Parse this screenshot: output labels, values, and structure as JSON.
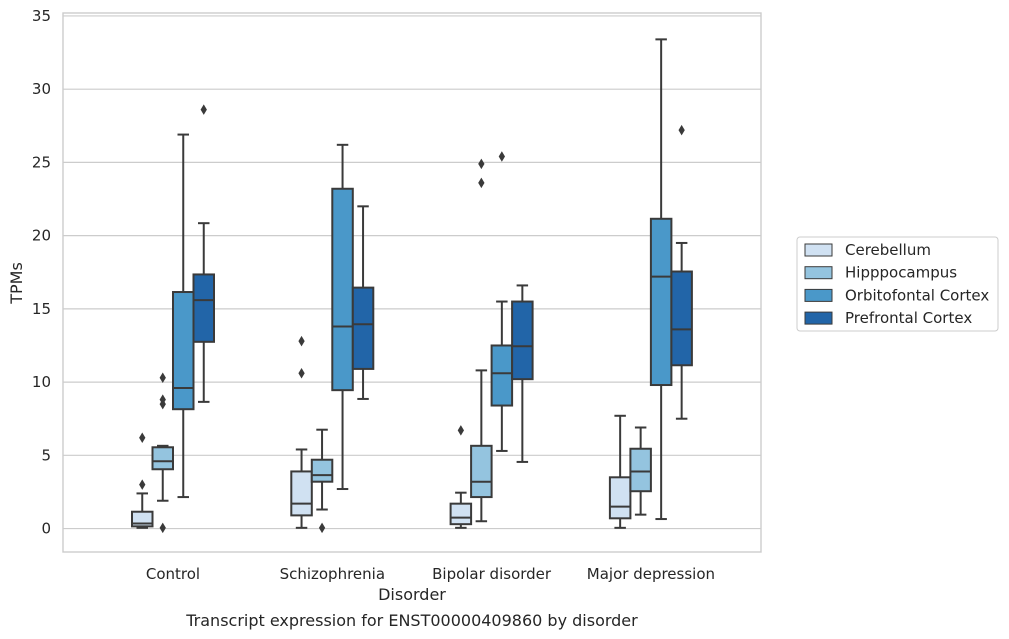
{
  "caption": "Transcript expression for ENST00000409860 by disorder",
  "chart_data": {
    "type": "boxplot",
    "title": "",
    "xlabel": "Disorder",
    "ylabel": "TPMs",
    "ylim": [
      -1.6,
      35.2
    ],
    "yticks": [
      0,
      5,
      10,
      15,
      20,
      25,
      30,
      35
    ],
    "grid": "horizontal",
    "legend_position": "right",
    "categories": [
      "Control",
      "Schizophrenia",
      "Bipolar disorder",
      "Major depression"
    ],
    "series": [
      {
        "name": "Cerebellum",
        "color": "#d0e1f2",
        "boxes": [
          {
            "whislo": 0.05,
            "q1": 0.15,
            "med": 0.35,
            "q3": 1.15,
            "whishi": 2.4,
            "fliers": [
              3.0,
              6.2
            ]
          },
          {
            "whislo": 0.05,
            "q1": 0.9,
            "med": 1.7,
            "q3": 3.9,
            "whishi": 5.4,
            "fliers": [
              10.6,
              12.8
            ]
          },
          {
            "whislo": 0.05,
            "q1": 0.3,
            "med": 0.75,
            "q3": 1.7,
            "whishi": 2.45,
            "fliers": [
              6.7
            ]
          },
          {
            "whislo": 0.05,
            "q1": 0.7,
            "med": 1.5,
            "q3": 3.5,
            "whishi": 7.7,
            "fliers": []
          }
        ]
      },
      {
        "name": "Hipppocampus",
        "color": "#94c4df",
        "boxes": [
          {
            "whislo": 1.9,
            "q1": 4.05,
            "med": 4.6,
            "q3": 5.55,
            "whishi": 5.65,
            "fliers": [
              0.05,
              8.5,
              8.8,
              10.3
            ]
          },
          {
            "whislo": 1.3,
            "q1": 3.2,
            "med": 3.65,
            "q3": 4.7,
            "whishi": 6.75,
            "fliers": [
              0.05
            ]
          },
          {
            "whislo": 0.5,
            "q1": 2.15,
            "med": 3.2,
            "q3": 5.65,
            "whishi": 10.8,
            "fliers": [
              23.6,
              24.9
            ]
          },
          {
            "whislo": 0.95,
            "q1": 2.55,
            "med": 3.9,
            "q3": 5.45,
            "whishi": 6.9,
            "fliers": []
          }
        ]
      },
      {
        "name": "Orbitofontal Cortex",
        "color": "#4a98c9",
        "boxes": [
          {
            "whislo": 2.15,
            "q1": 8.15,
            "med": 9.6,
            "q3": 16.15,
            "whishi": 26.9,
            "fliers": []
          },
          {
            "whislo": 2.7,
            "q1": 9.45,
            "med": 13.8,
            "q3": 23.2,
            "whishi": 26.2,
            "fliers": []
          },
          {
            "whislo": 5.3,
            "q1": 8.4,
            "med": 10.6,
            "q3": 12.5,
            "whishi": 15.5,
            "fliers": [
              25.4
            ]
          },
          {
            "whislo": 0.65,
            "q1": 9.8,
            "med": 17.2,
            "q3": 21.15,
            "whishi": 33.4,
            "fliers": []
          }
        ]
      },
      {
        "name": "Prefrontal Cortex",
        "color": "#2265a8",
        "boxes": [
          {
            "whislo": 8.65,
            "q1": 12.75,
            "med": 15.6,
            "q3": 17.35,
            "whishi": 20.85,
            "fliers": [
              28.6
            ]
          },
          {
            "whislo": 8.85,
            "q1": 10.9,
            "med": 13.95,
            "q3": 16.45,
            "whishi": 22.0,
            "fliers": []
          },
          {
            "whislo": 4.55,
            "q1": 10.2,
            "med": 12.45,
            "q3": 15.5,
            "whishi": 16.6,
            "fliers": []
          },
          {
            "whislo": 7.5,
            "q1": 11.15,
            "med": 13.6,
            "q3": 17.55,
            "whishi": 19.5,
            "fliers": [
              27.2
            ]
          }
        ]
      }
    ]
  }
}
